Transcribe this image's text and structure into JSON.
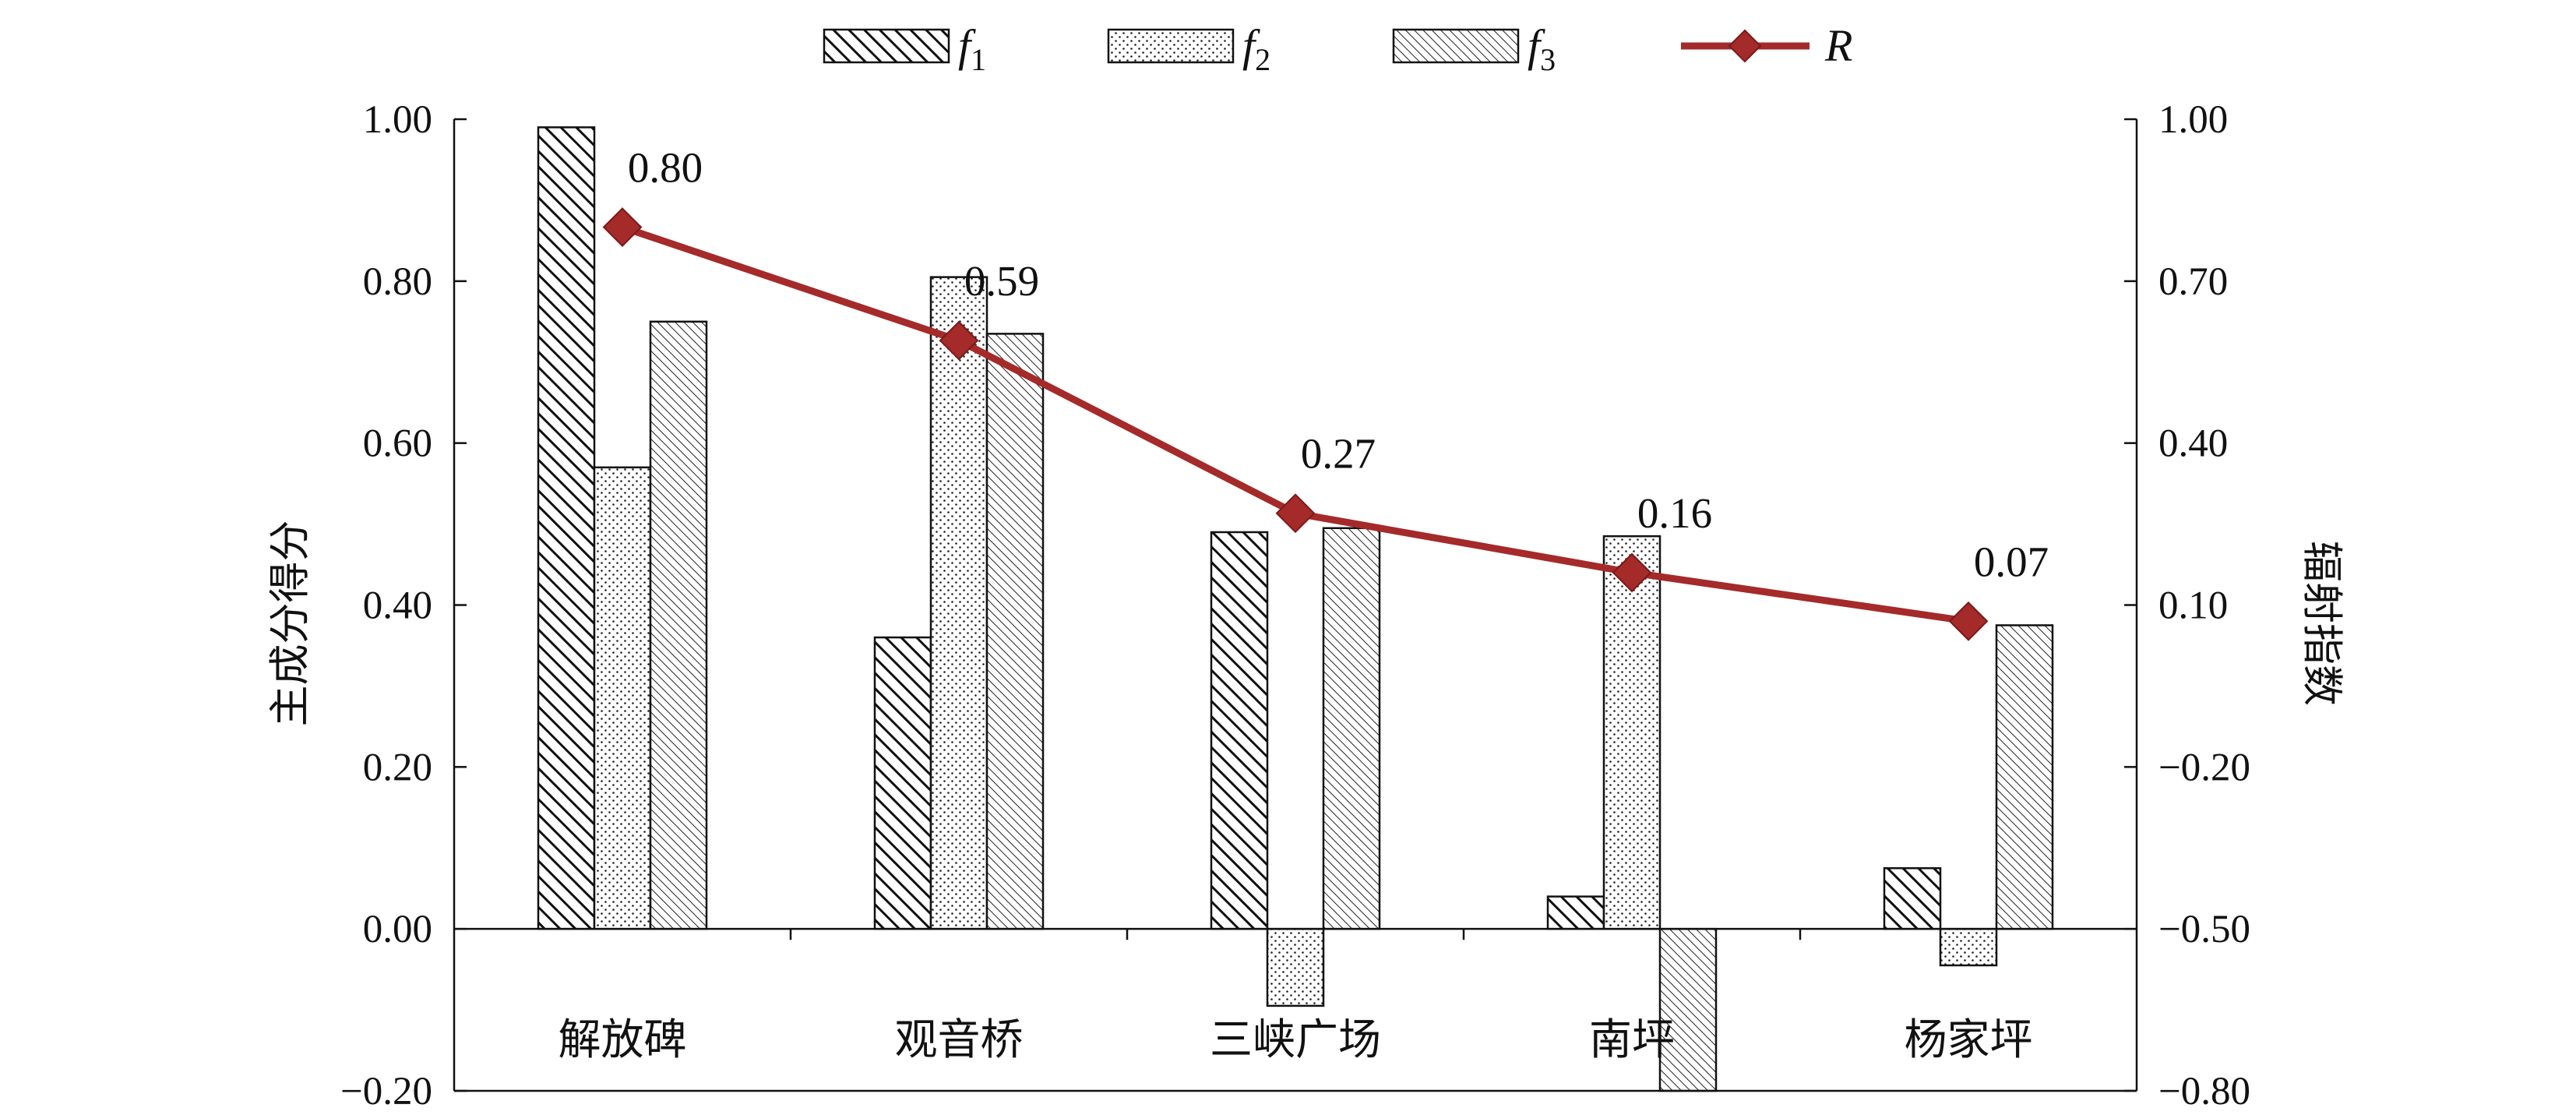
{
  "chart_data": {
    "type": "bar",
    "categories": [
      "解放碑",
      "观音桥",
      "三峡广场",
      "南坪",
      "杨家坪"
    ],
    "series": [
      {
        "name": "f1",
        "name_main": "f",
        "name_sub": "1",
        "values": [
          0.99,
          0.36,
          0.49,
          0.04,
          0.075
        ],
        "pattern": "dense-diagonal"
      },
      {
        "name": "f2",
        "name_main": "f",
        "name_sub": "2",
        "values": [
          0.57,
          0.805,
          -0.095,
          0.485,
          -0.045
        ],
        "pattern": "dots"
      },
      {
        "name": "f3",
        "name_main": "f",
        "name_sub": "3",
        "values": [
          0.75,
          0.735,
          0.495,
          -0.2,
          0.375
        ],
        "pattern": "fine-diagonal"
      }
    ],
    "line_series": {
      "name": "R",
      "values": [
        0.8,
        0.59,
        0.27,
        0.16,
        0.07
      ],
      "labels": [
        "0.80",
        "0.59",
        "0.27",
        "0.16",
        "0.07"
      ],
      "color": "#a52a2a",
      "marker": "diamond",
      "axis": "right"
    },
    "ylabel_left": "主成分得分",
    "ylabel_right": "辐射指数",
    "ylim_left": [
      -0.2,
      1.0
    ],
    "ylim_right": [
      -0.8,
      1.0
    ],
    "yticks_left": [
      "1.00",
      "0.80",
      "0.60",
      "0.40",
      "0.20",
      "0.00",
      "−0.20"
    ],
    "yticks_right": [
      "1.00",
      "0.70",
      "0.40",
      "0.10",
      "−0.20",
      "−0.50",
      "−0.80"
    ],
    "legend_position": "top-center",
    "grid": false
  }
}
